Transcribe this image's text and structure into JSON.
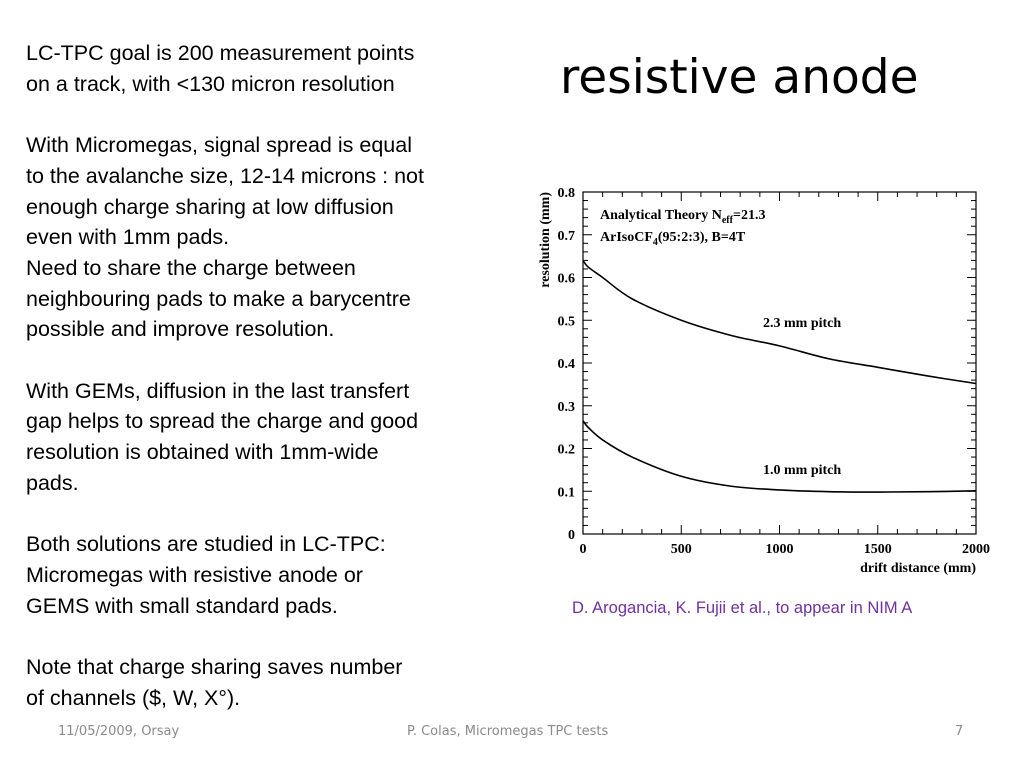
{
  "slide": {
    "title": "resistive anode",
    "paragraphs": [
      [
        "LC-TPC goal is 200 measurement points",
        "on a track, with <130 micron resolution"
      ],
      [
        "With Micromegas, signal spread is equal",
        "to the avalanche size, 12-14 microns : not",
        "enough charge sharing at low diffusion",
        "even with 1mm pads.",
        "Need to share the charge between",
        "neighbouring pads to make a barycentre",
        "possible and improve resolution."
      ],
      [
        "With GEMs, diffusion in the last transfert",
        "gap helps to spread the charge and good",
        "resolution is obtained with 1mm-wide",
        "pads."
      ],
      [
        "Both solutions are studied in LC-TPC:",
        "Micromegas with resistive anode or",
        "GEMS with small standard pads."
      ],
      [
        "Note that charge sharing saves number",
        "of channels ($, W, X°)."
      ]
    ],
    "citation": "D. Arogancia, K. Fujii et al., to appear in NIM A",
    "citation_color": "#7030a0",
    "footer": {
      "date": "11/05/2009, Orsay",
      "center": "P. Colas, Micromegas TPC tests",
      "page": "7"
    }
  },
  "chart_data": {
    "type": "line",
    "xlabel": "drift distance (mm)",
    "ylabel": "resolution (mm)",
    "xlim": [
      0,
      2000
    ],
    "ylim": [
      0,
      0.8
    ],
    "xticks": [
      "0",
      "500",
      "1000",
      "1500",
      "2000"
    ],
    "yticks": [
      "0",
      "0.1",
      "0.2",
      "0.3",
      "0.4",
      "0.5",
      "0.6",
      "0.7",
      "0.8"
    ],
    "annotation_line1_main": "Analytical Theory N",
    "annotation_line1_sub": "eff",
    "annotation_line1_tail": "=21.3",
    "annotation_line2_main": "ArIsoCF",
    "annotation_line2_sub": "4",
    "annotation_line2_tail": "(95:2:3), B=4T",
    "grid": false,
    "series": [
      {
        "name": "2.3 mm pitch",
        "x": [
          0,
          25,
          100,
          250,
          500,
          750,
          1000,
          1250,
          1500,
          1750,
          2000
        ],
        "y": [
          0.64,
          0.625,
          0.6,
          0.55,
          0.5,
          0.465,
          0.44,
          0.41,
          0.39,
          0.37,
          0.352
        ]
      },
      {
        "name": "1.0 mm pitch",
        "x": [
          0,
          25,
          100,
          250,
          500,
          750,
          1000,
          1250,
          1500,
          1750,
          2000
        ],
        "y": [
          0.265,
          0.25,
          0.22,
          0.18,
          0.135,
          0.112,
          0.103,
          0.099,
          0.098,
          0.099,
          0.101
        ]
      }
    ]
  }
}
